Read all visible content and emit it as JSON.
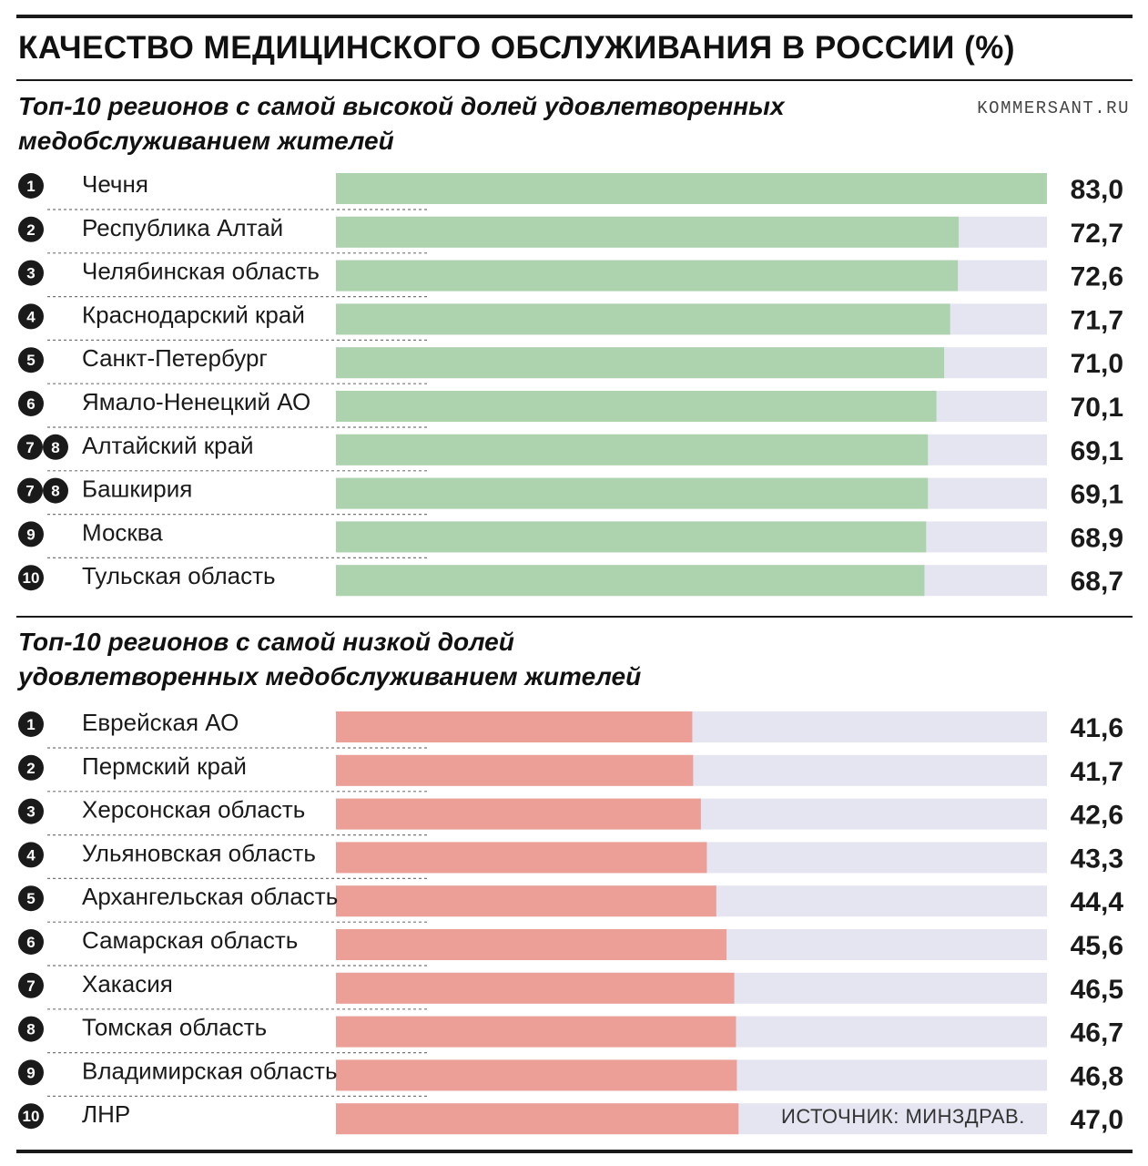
{
  "header": {
    "title": "КАЧЕСТВО МЕДИЦИНСКОГО ОБСЛУЖИВАНИЯ В РОССИИ (%)",
    "source_site": "KOMMERSANT.RU"
  },
  "footer": {
    "source": "ИСТОЧНИК: МИНЗДРАВ."
  },
  "colors": {
    "top_bar": "#acd3ad",
    "bottom_bar": "#ec9f97",
    "track": "#e4e5f1",
    "text": "#1a1a1a"
  },
  "chart_data": [
    {
      "type": "bar",
      "orientation": "horizontal",
      "title": "Топ-10 регионов с самой высокой долей удовлетворенных медобслуживанием жителей",
      "title_lines": [
        "Топ-10 регионов с самой высокой долей удовлетворенных",
        "медобслуживанием жителей"
      ],
      "xlim": [
        0,
        83
      ],
      "ranks": [
        "1",
        "2",
        "3",
        "4",
        "5",
        "6",
        "7 8",
        "7 8",
        "9",
        "10"
      ],
      "categories": [
        "Чечня",
        "Республика Алтай",
        "Челябинская область",
        "Краснодарский край",
        "Санкт-Петербург",
        "Ямало-Ненецкий АО",
        "Алтайский край",
        "Башкирия",
        "Москва",
        "Тульская область"
      ],
      "values": [
        83.0,
        72.7,
        72.6,
        71.7,
        71.0,
        70.1,
        69.1,
        69.1,
        68.9,
        68.7
      ],
      "value_labels": [
        "83,0",
        "72,7",
        "72,6",
        "71,7",
        "71,0",
        "70,1",
        "69,1",
        "69,1",
        "68,9",
        "68,7"
      ]
    },
    {
      "type": "bar",
      "orientation": "horizontal",
      "title": "Топ-10 регионов с самой низкой долей удовлетворенных медобслуживанием жителей",
      "title_lines": [
        "Топ-10 регионов с самой низкой долей",
        "удовлетворенных медобслуживанием жителей"
      ],
      "xlim": [
        0,
        83
      ],
      "ranks": [
        "1",
        "2",
        "3",
        "4",
        "5",
        "6",
        "7",
        "8",
        "9",
        "10"
      ],
      "categories": [
        "Еврейская АО",
        "Пермский край",
        "Херсонская область",
        "Ульяновская область",
        "Архангельская область",
        "Самарская область",
        "Хакасия",
        "Томская область",
        "Владимирская область",
        "ЛНР"
      ],
      "values": [
        41.6,
        41.7,
        42.6,
        43.3,
        44.4,
        45.6,
        46.5,
        46.7,
        46.8,
        47.0
      ],
      "value_labels": [
        "41,6",
        "41,7",
        "42,6",
        "43,3",
        "44,4",
        "45,6",
        "46,5",
        "46,7",
        "46,8",
        "47,0"
      ]
    }
  ]
}
